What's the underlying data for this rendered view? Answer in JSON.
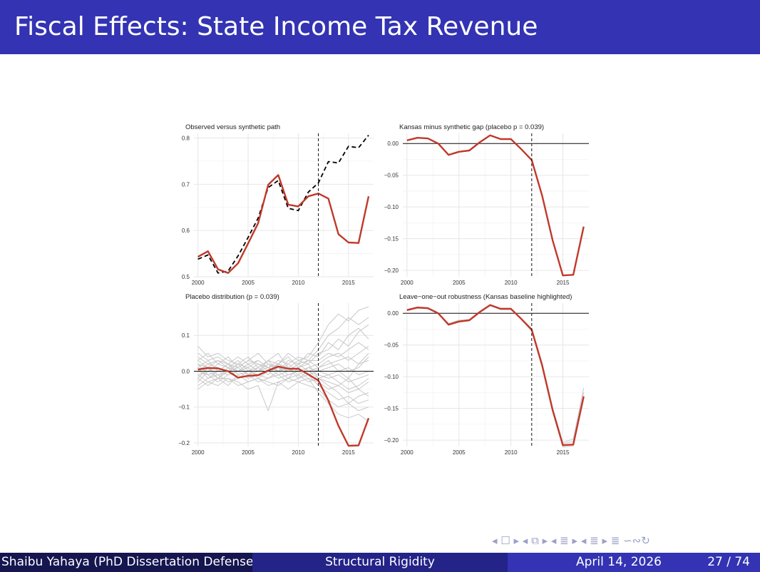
{
  "slide": {
    "title": "Fiscal Effects: State Income Tax Revenue",
    "nav_symbols": "◂ ☐ ▸ ◂ ⧉ ▸ ◂ ≣ ▸ ◂ ≣ ▸ ≣ ∽∾↻"
  },
  "footer": {
    "author": "Shaibu Yahaya  (PhD Dissertation Defense)",
    "short_title": "Structural Rigidity",
    "date": "April 14, 2026",
    "page": "27 / 74"
  },
  "colors": {
    "title_bar": "#3333b3",
    "kansas": "#c0392b",
    "synthetic": "#000000",
    "placebo": "#c8c8c8"
  },
  "chart_data": [
    {
      "type": "line",
      "title": "Observed versus synthetic path",
      "xlabel": "",
      "ylabel": "",
      "xlim": [
        1999.6,
        2017.5
      ],
      "ylim": [
        0.5,
        0.81
      ],
      "xticks": [
        2000,
        2005,
        2010,
        2015
      ],
      "yticks": [
        0.5,
        0.6,
        0.7,
        0.8
      ],
      "ytick_labels": [
        "0.5",
        "0.6",
        "0.7",
        "0.8"
      ],
      "vline": 2012,
      "hline": null,
      "x": [
        2000,
        2001,
        2002,
        2003,
        2004,
        2005,
        2006,
        2007,
        2008,
        2009,
        2010,
        2011,
        2012,
        2013,
        2014,
        2015,
        2016,
        2017
      ],
      "series": [
        {
          "role": "synthetic",
          "values": [
            0.538,
            0.547,
            0.508,
            0.512,
            0.545,
            0.585,
            0.627,
            0.693,
            0.708,
            0.648,
            0.643,
            0.683,
            0.703,
            0.749,
            0.746,
            0.782,
            0.779,
            0.806
          ]
        },
        {
          "role": "observed",
          "values": [
            0.543,
            0.555,
            0.516,
            0.508,
            0.529,
            0.572,
            0.616,
            0.699,
            0.72,
            0.656,
            0.652,
            0.674,
            0.68,
            0.669,
            0.592,
            0.574,
            0.573,
            0.674
          ]
        }
      ]
    },
    {
      "type": "line",
      "title": "Kansas minus synthetic gap (placebo p = 0.039)",
      "xlabel": "",
      "ylabel": "",
      "xlim": [
        1999.6,
        2017.5
      ],
      "ylim": [
        -0.21,
        0.016
      ],
      "xticks": [
        2000,
        2005,
        2010,
        2015
      ],
      "yticks": [
        0.0,
        -0.05,
        -0.1,
        -0.15,
        -0.2
      ],
      "ytick_labels": [
        "0.00",
        "−0.05",
        "−0.10",
        "−0.15",
        "−0.20"
      ],
      "vline": 2012,
      "hline": 0,
      "x": [
        2000,
        2001,
        2002,
        2003,
        2004,
        2005,
        2006,
        2007,
        2008,
        2009,
        2010,
        2011,
        2012,
        2013,
        2014,
        2015,
        2016,
        2017
      ],
      "series": [
        {
          "role": "gap",
          "values": [
            0.005,
            0.009,
            0.008,
            0.0,
            -0.018,
            -0.013,
            -0.011,
            0.002,
            0.013,
            0.007,
            0.007,
            -0.009,
            -0.026,
            -0.082,
            -0.152,
            -0.208,
            -0.207,
            -0.131
          ]
        }
      ]
    },
    {
      "type": "line",
      "title": "Placebo distribution (p = 0.039)",
      "xlabel": "",
      "ylabel": "",
      "xlim": [
        1999.6,
        2017.5
      ],
      "ylim": [
        -0.21,
        0.19
      ],
      "xticks": [
        2000,
        2005,
        2010,
        2015
      ],
      "yticks": [
        0.1,
        0.0,
        -0.1,
        -0.2
      ],
      "ytick_labels": [
        "0.1",
        "0.0",
        "−0.1",
        "−0.2"
      ],
      "vline": 2012,
      "hline": 0,
      "x": [
        2000,
        2001,
        2002,
        2003,
        2004,
        2005,
        2006,
        2007,
        2008,
        2009,
        2010,
        2011,
        2012,
        2013,
        2014,
        2015,
        2016,
        2017
      ],
      "series": [
        {
          "role": "placebo",
          "values": [
            0.07,
            0.04,
            0.05,
            0.03,
            0.02,
            0.04,
            0.01,
            0.03,
            0.02,
            0.05,
            0.03,
            0.04,
            0.08,
            0.13,
            0.16,
            0.14,
            0.17,
            0.18
          ]
        },
        {
          "role": "placebo",
          "values": [
            0.04,
            0.02,
            0.03,
            0.01,
            0.03,
            0.0,
            0.02,
            0.01,
            0.03,
            0.02,
            0.04,
            0.03,
            0.06,
            0.1,
            0.12,
            0.15,
            0.13,
            0.15
          ]
        },
        {
          "role": "placebo",
          "values": [
            0.03,
            0.05,
            0.02,
            0.04,
            0.01,
            0.03,
            0.05,
            0.02,
            0.0,
            0.03,
            0.02,
            0.05,
            0.04,
            0.08,
            0.06,
            0.1,
            0.12,
            0.09
          ]
        },
        {
          "role": "placebo",
          "values": [
            0.02,
            0.01,
            0.03,
            0.02,
            0.04,
            0.02,
            0.0,
            0.03,
            0.05,
            0.01,
            0.03,
            0.02,
            0.05,
            0.06,
            0.09,
            0.07,
            0.11,
            0.13
          ]
        },
        {
          "role": "placebo",
          "values": [
            0.01,
            0.03,
            0.0,
            0.02,
            0.01,
            0.03,
            0.02,
            0.0,
            0.02,
            0.04,
            0.01,
            0.03,
            0.03,
            0.05,
            0.04,
            0.06,
            0.08,
            0.06
          ]
        },
        {
          "role": "placebo",
          "values": [
            0.0,
            0.02,
            0.01,
            0.0,
            0.02,
            0.01,
            0.03,
            0.01,
            0.0,
            0.02,
            0.0,
            0.01,
            0.02,
            0.04,
            0.05,
            0.03,
            0.05,
            0.07
          ]
        },
        {
          "role": "placebo",
          "values": [
            -0.01,
            0.0,
            0.02,
            0.01,
            0.0,
            0.02,
            0.0,
            0.02,
            0.01,
            0.0,
            0.02,
            0.0,
            0.01,
            0.02,
            0.03,
            0.04,
            0.02,
            0.03
          ]
        },
        {
          "role": "placebo",
          "values": [
            0.02,
            -0.01,
            0.0,
            0.02,
            -0.01,
            0.0,
            0.01,
            -0.01,
            0.02,
            0.01,
            -0.01,
            0.01,
            0.0,
            0.01,
            0.02,
            0.0,
            0.01,
            0.04
          ]
        },
        {
          "role": "placebo",
          "values": [
            -0.02,
            0.01,
            -0.01,
            0.0,
            0.01,
            -0.01,
            0.0,
            0.01,
            -0.01,
            0.0,
            0.01,
            -0.01,
            0.0,
            -0.01,
            0.0,
            0.01,
            -0.01,
            0.0
          ]
        },
        {
          "role": "placebo",
          "values": [
            0.01,
            -0.02,
            0.0,
            -0.01,
            0.0,
            0.01,
            -0.02,
            0.0,
            0.01,
            -0.01,
            0.0,
            0.0,
            -0.01,
            -0.02,
            -0.01,
            -0.03,
            -0.02,
            -0.01
          ]
        },
        {
          "role": "placebo",
          "values": [
            -0.03,
            0.0,
            -0.02,
            0.01,
            -0.02,
            0.0,
            -0.01,
            -0.02,
            0.0,
            0.01,
            -0.02,
            0.0,
            -0.02,
            -0.03,
            -0.04,
            -0.02,
            -0.05,
            -0.03
          ]
        },
        {
          "role": "placebo",
          "values": [
            0.0,
            -0.01,
            -0.03,
            -0.01,
            0.0,
            -0.02,
            -0.01,
            0.0,
            -0.02,
            -0.01,
            0.0,
            -0.02,
            -0.03,
            -0.05,
            -0.04,
            -0.06,
            -0.05,
            -0.07
          ]
        },
        {
          "role": "placebo",
          "values": [
            -0.04,
            -0.02,
            -0.01,
            -0.03,
            -0.02,
            -0.01,
            -0.03,
            -0.02,
            -0.01,
            -0.03,
            -0.02,
            -0.01,
            -0.04,
            -0.06,
            -0.08,
            -0.07,
            -0.09,
            -0.08
          ]
        },
        {
          "role": "placebo",
          "values": [
            -0.02,
            -0.04,
            -0.02,
            -0.02,
            -0.04,
            -0.03,
            -0.02,
            -0.04,
            -0.03,
            -0.02,
            -0.03,
            -0.04,
            -0.05,
            -0.08,
            -0.1,
            -0.09,
            -0.11,
            -0.1
          ]
        },
        {
          "role": "placebo",
          "values": [
            -0.01,
            -0.03,
            -0.04,
            -0.02,
            -0.03,
            -0.05,
            -0.04,
            -0.11,
            -0.03,
            -0.05,
            -0.03,
            -0.02,
            -0.06,
            -0.09,
            -0.12,
            -0.13,
            -0.12,
            -0.14
          ]
        },
        {
          "role": "placebo",
          "values": [
            0.03,
            0.01,
            -0.02,
            0.0,
            0.02,
            -0.01,
            0.01,
            0.03,
            0.0,
            -0.02,
            0.01,
            0.02,
            -0.02,
            -0.04,
            -0.06,
            -0.09,
            -0.07,
            -0.06
          ]
        },
        {
          "role": "placebo",
          "values": [
            0.05,
            0.03,
            0.04,
            0.02,
            0.0,
            0.02,
            0.03,
            0.01,
            0.02,
            0.0,
            0.02,
            0.03,
            0.01,
            0.03,
            0.0,
            -0.02,
            0.02,
            0.05
          ]
        },
        {
          "role": "placebo",
          "values": [
            -0.05,
            -0.03,
            -0.02,
            -0.04,
            -0.01,
            -0.03,
            -0.02,
            -0.03,
            -0.04,
            -0.02,
            -0.01,
            -0.03,
            -0.02,
            -0.01,
            -0.03,
            -0.05,
            -0.04,
            -0.02
          ]
        },
        {
          "role": "kansas",
          "values": [
            0.005,
            0.009,
            0.008,
            0.0,
            -0.018,
            -0.013,
            -0.011,
            0.002,
            0.013,
            0.007,
            0.007,
            -0.009,
            -0.026,
            -0.082,
            -0.152,
            -0.208,
            -0.207,
            -0.131
          ]
        }
      ]
    },
    {
      "type": "line",
      "title": "Leave−one−out robustness (Kansas baseline highlighted)",
      "xlabel": "",
      "ylabel": "",
      "xlim": [
        1999.6,
        2017.5
      ],
      "ylim": [
        -0.21,
        0.016
      ],
      "xticks": [
        2000,
        2005,
        2010,
        2015
      ],
      "yticks": [
        0.0,
        -0.05,
        -0.1,
        -0.15,
        -0.2
      ],
      "ytick_labels": [
        "0.00",
        "−0.05",
        "−0.10",
        "−0.15",
        "−0.20"
      ],
      "vline": 2012,
      "hline": 0,
      "x": [
        2000,
        2001,
        2002,
        2003,
        2004,
        2005,
        2006,
        2007,
        2008,
        2009,
        2010,
        2011,
        2012,
        2013,
        2014,
        2015,
        2016,
        2017
      ],
      "series": [
        {
          "role": "placebo",
          "values": [
            0.004,
            0.008,
            0.007,
            -0.001,
            -0.017,
            -0.012,
            -0.01,
            0.001,
            0.012,
            0.006,
            0.006,
            -0.008,
            -0.024,
            -0.078,
            -0.148,
            -0.204,
            -0.198,
            -0.118
          ]
        },
        {
          "role": "placebo",
          "values": [
            0.006,
            0.01,
            0.009,
            0.001,
            -0.019,
            -0.014,
            -0.012,
            0.003,
            0.014,
            0.008,
            0.008,
            -0.01,
            -0.028,
            -0.085,
            -0.155,
            -0.211,
            -0.209,
            -0.135
          ]
        },
        {
          "role": "placebo",
          "values": [
            0.005,
            0.009,
            0.008,
            0.0,
            -0.016,
            -0.011,
            -0.01,
            0.002,
            0.012,
            0.007,
            0.007,
            -0.008,
            -0.025,
            -0.08,
            -0.15,
            -0.206,
            -0.202,
            -0.125
          ]
        },
        {
          "role": "kansas",
          "values": [
            0.005,
            0.009,
            0.008,
            0.0,
            -0.018,
            -0.013,
            -0.011,
            0.002,
            0.013,
            0.007,
            0.007,
            -0.009,
            -0.026,
            -0.082,
            -0.152,
            -0.208,
            -0.207,
            -0.131
          ]
        }
      ]
    }
  ]
}
